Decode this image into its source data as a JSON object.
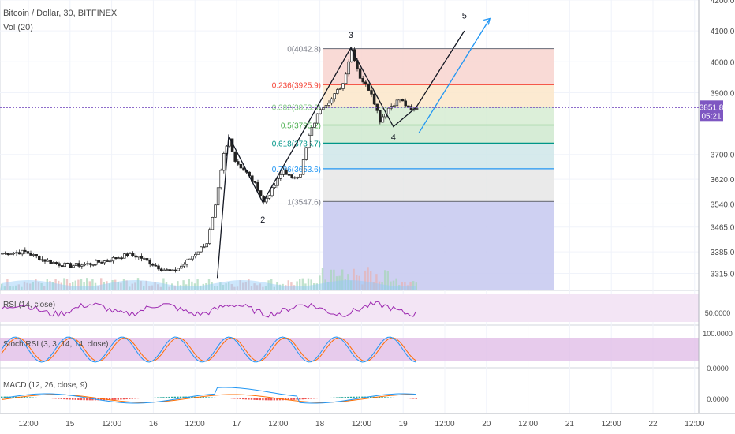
{
  "header": {
    "symbol_title": "Bitcoin / Dollar, 30, BITFINEX",
    "volume_label": "Vol (20)"
  },
  "colors": {
    "up": "#53b987",
    "down": "#222222",
    "rsi": "#9c27b0",
    "stoch_k": "#2196f3",
    "stoch_d": "#ff6d00",
    "macd": "#2196f3",
    "signal": "#ff6d00",
    "price_line": "#7e57c2"
  },
  "chart_data": [
    {
      "type": "candlestick",
      "name": "price",
      "ylim": [
        3260,
        4200
      ],
      "y_ticks": [
        4200,
        4100,
        4000,
        3900,
        3700,
        3620,
        3540,
        3465,
        3385,
        3315
      ],
      "y_tick_labels": [
        "4200.0",
        "4100.0",
        "4000.0",
        "3900.0",
        "3700.0",
        "3620.0",
        "3540.0",
        "3465.0",
        "3385.0",
        "3315.0"
      ],
      "x_ticks": [
        "12:00",
        "15",
        "12:00",
        "16",
        "12:00",
        "17",
        "12:00",
        "18",
        "12:00",
        "19",
        "12:00",
        "20",
        "12:00",
        "21",
        "12:00",
        "22",
        "12:00"
      ],
      "current_price": {
        "value": 3851.8,
        "label": "3851.8",
        "countdown": "05:21"
      },
      "path_keypoints": [
        [
          0,
          3380
        ],
        [
          8,
          3385
        ],
        [
          14,
          3360
        ],
        [
          20,
          3345
        ],
        [
          24,
          3340
        ],
        [
          30,
          3345
        ],
        [
          36,
          3355
        ],
        [
          40,
          3365
        ],
        [
          44,
          3375
        ],
        [
          48,
          3370
        ],
        [
          52,
          3350
        ],
        [
          56,
          3330
        ],
        [
          60,
          3320
        ],
        [
          64,
          3345
        ],
        [
          68,
          3380
        ],
        [
          72,
          3415
        ],
        [
          75,
          3530
        ],
        [
          78,
          3700
        ],
        [
          80,
          3750
        ],
        [
          82,
          3680
        ],
        [
          86,
          3640
        ],
        [
          90,
          3590
        ],
        [
          92,
          3545
        ],
        [
          96,
          3600
        ],
        [
          99,
          3650
        ],
        [
          102,
          3620
        ],
        [
          105,
          3640
        ],
        [
          108,
          3760
        ],
        [
          112,
          3850
        ],
        [
          116,
          3880
        ],
        [
          120,
          3930
        ],
        [
          123,
          4040
        ],
        [
          126,
          3950
        ],
        [
          130,
          3900
        ],
        [
          133,
          3810
        ],
        [
          136,
          3850
        ],
        [
          140,
          3880
        ],
        [
          144,
          3840
        ],
        [
          146,
          3852
        ]
      ],
      "fibonacci": [
        {
          "ratio": "0",
          "value": 4042.8,
          "label": "0(4042.8)",
          "color": "#787b86"
        },
        {
          "ratio": "0.236",
          "value": 3925.9,
          "label": "0.236(3925.9)",
          "color": "#f44336"
        },
        {
          "ratio": "0.382",
          "value": 3853.6,
          "label": "0.382(3853.6)",
          "color": "#81c784"
        },
        {
          "ratio": "0.5",
          "value": 3795.2,
          "label": "0.5(3795.2)",
          "color": "#4caf50"
        },
        {
          "ratio": "0.618",
          "value": 3736.7,
          "label": "0.618(3736.7)",
          "color": "#009688"
        },
        {
          "ratio": "0.786",
          "value": 3653.6,
          "label": "0.786(3653.6)",
          "color": "#2196f3"
        },
        {
          "ratio": "1",
          "value": 3547.6,
          "label": "1(3547.6)",
          "color": "#787b86"
        }
      ],
      "wave_labels": [
        {
          "label": "2",
          "bar": 92,
          "value": 3520
        },
        {
          "label": "3",
          "bar": 123,
          "value": 4062
        },
        {
          "label": "4",
          "bar": 138,
          "value": 3788
        },
        {
          "label": "5",
          "bar": 163,
          "value": 4125
        }
      ]
    },
    {
      "type": "line",
      "name": "RSI (14, close)",
      "title": "RSI (14, close)",
      "y_tick_label": "50.0000",
      "ylim": [
        0,
        100
      ],
      "band": [
        30,
        70
      ]
    },
    {
      "type": "line",
      "name": "Stoch RSI (3, 3, 14, 14, close)",
      "title": "Stoch RSI (3, 3, 14, 14, close)",
      "y_tick_labels": [
        "100.0000",
        "0.0000"
      ],
      "ylim": [
        0,
        100
      ],
      "band": [
        20,
        80
      ]
    },
    {
      "type": "histogram+line",
      "name": "MACD (12, 26, close, 9)",
      "title": "MACD (12, 26, close, 9)",
      "y_tick_label": "0.0000"
    }
  ]
}
